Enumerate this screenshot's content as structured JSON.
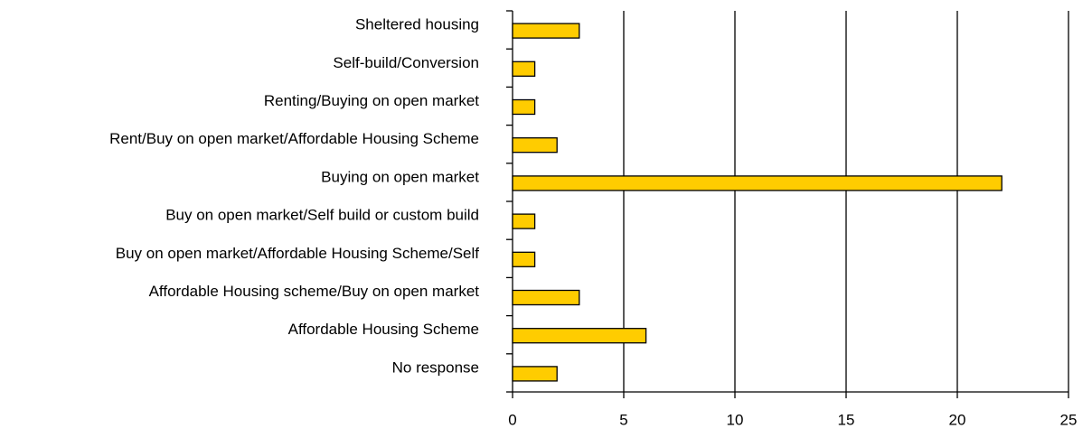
{
  "chart_data": {
    "type": "bar",
    "orientation": "horizontal",
    "categories": [
      "Sheltered housing",
      "Self-build/Conversion",
      "Renting/Buying on open market",
      "Rent/Buy on open market/Affordable Housing Scheme",
      "Buying on open market",
      "Buy on open market/Self build or custom build",
      "Buy on open market/Affordable Housing Scheme/Self",
      "Affordable Housing scheme/Buy on open market",
      "Affordable Housing Scheme",
      "No response"
    ],
    "values": [
      3,
      1,
      1,
      2,
      22,
      1,
      1,
      3,
      6,
      2
    ],
    "color": "#ffcc00",
    "xlim": [
      0,
      25
    ],
    "xticks": [
      0,
      5,
      10,
      15,
      20,
      25
    ],
    "grid": true
  }
}
